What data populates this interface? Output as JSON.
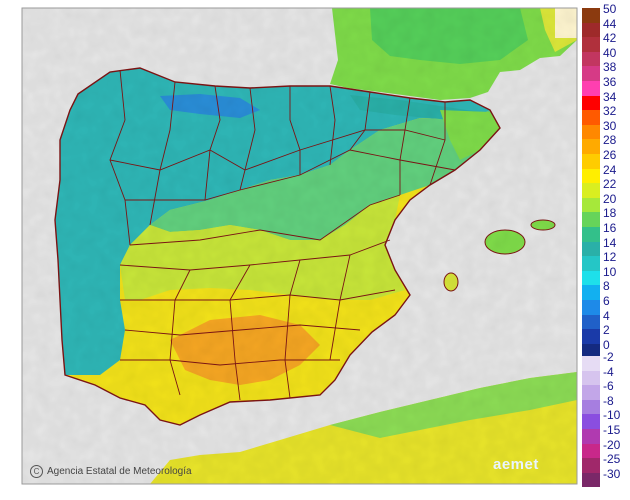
{
  "map": {
    "colors": {
      "sea": "#e6e6e6",
      "border": "#7a1414",
      "coast_cyan": "#2fb7b7",
      "mid_green": "#5fd27a",
      "yellow_green": "#c8e63a",
      "yellow": "#f2e21a",
      "orange": "#f5a623",
      "north_sea_green": "#66d14a"
    },
    "credit": "Agencia Estatal de Meteorología",
    "logo": "aemet"
  },
  "legend": {
    "warm": [
      {
        "label": "50",
        "color": "#8b3a0f"
      },
      {
        "label": "44",
        "color": "#9e2a2a"
      },
      {
        "label": "42",
        "color": "#b0303c"
      },
      {
        "label": "40",
        "color": "#c23660"
      },
      {
        "label": "38",
        "color": "#d63a86"
      },
      {
        "label": "36",
        "color": "#ff3fb0"
      },
      {
        "label": "34",
        "color": "#ff0000"
      },
      {
        "label": "32",
        "color": "#ff5a00"
      },
      {
        "label": "30",
        "color": "#ff8800"
      },
      {
        "label": "28",
        "color": "#ffaa00"
      },
      {
        "label": "26",
        "color": "#ffcc00"
      },
      {
        "label": "24",
        "color": "#ffee00"
      },
      {
        "label": "22",
        "color": "#d9ee20"
      },
      {
        "label": "20",
        "color": "#a6e83a"
      },
      {
        "label": "18",
        "color": "#66d45a"
      },
      {
        "label": "16",
        "color": "#33c08a"
      },
      {
        "label": "14",
        "color": "#2ab0a8"
      },
      {
        "label": "12",
        "color": "#25c6c6"
      },
      {
        "label": "10",
        "color": "#1ee0ea"
      },
      {
        "label": "8",
        "color": "#12b0f0"
      },
      {
        "label": "6",
        "color": "#1e8ae8"
      },
      {
        "label": "4",
        "color": "#2060c8"
      },
      {
        "label": "2",
        "color": "#1a3aa8"
      },
      {
        "label": "0",
        "color": "#142a80"
      }
    ],
    "cold": [
      {
        "label": "-2",
        "color": "#e6dcf4"
      },
      {
        "label": "-4",
        "color": "#d6c4ee"
      },
      {
        "label": "-6",
        "color": "#c2a6e8"
      },
      {
        "label": "-8",
        "color": "#a67ee0"
      },
      {
        "label": "-10",
        "color": "#8a4ee0"
      },
      {
        "label": "-15",
        "color": "#b03ab0"
      },
      {
        "label": "-20",
        "color": "#c8288a"
      },
      {
        "label": "-25",
        "color": "#a0286a"
      },
      {
        "label": "-30",
        "color": "#7a2868"
      }
    ]
  }
}
